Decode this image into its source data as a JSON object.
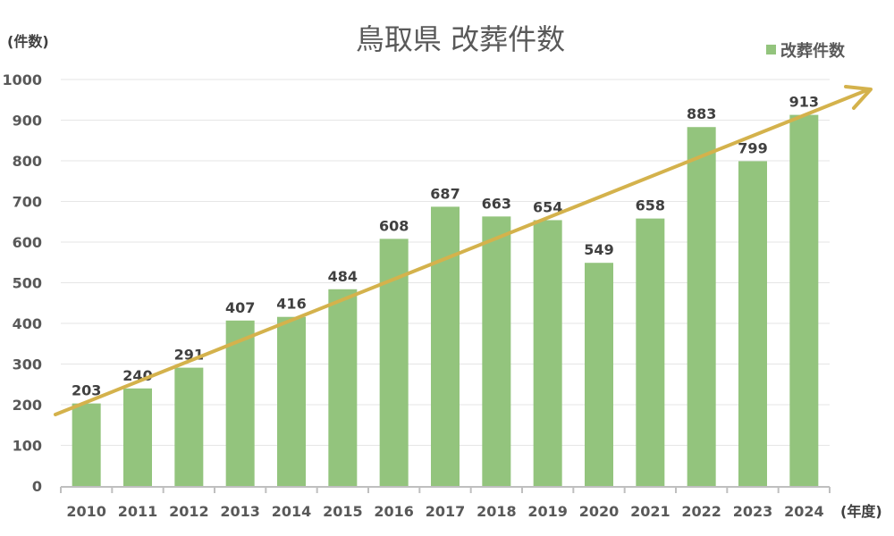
{
  "chart_data": {
    "type": "bar",
    "title": "鳥取県 改葬件数",
    "xlabel": "(年度)",
    "ylabel": "(件数)",
    "categories": [
      "2010",
      "2011",
      "2012",
      "2013",
      "2014",
      "2015",
      "2016",
      "2017",
      "2018",
      "2019",
      "2020",
      "2021",
      "2022",
      "2023",
      "2024"
    ],
    "series": [
      {
        "name": "改葬件数",
        "values": [
          203,
          240,
          291,
          407,
          416,
          484,
          608,
          687,
          663,
          654,
          549,
          658,
          883,
          799,
          913
        ],
        "color": "#93c47d"
      }
    ],
    "ylim": [
      0,
      1000
    ],
    "yticks": [
      0,
      100,
      200,
      300,
      400,
      500,
      600,
      700,
      800,
      900,
      1000
    ],
    "grid": true,
    "legend": "top-right",
    "data_labels": true,
    "annotations": [
      {
        "type": "trend-arrow",
        "color": "#d4b24c"
      }
    ]
  }
}
